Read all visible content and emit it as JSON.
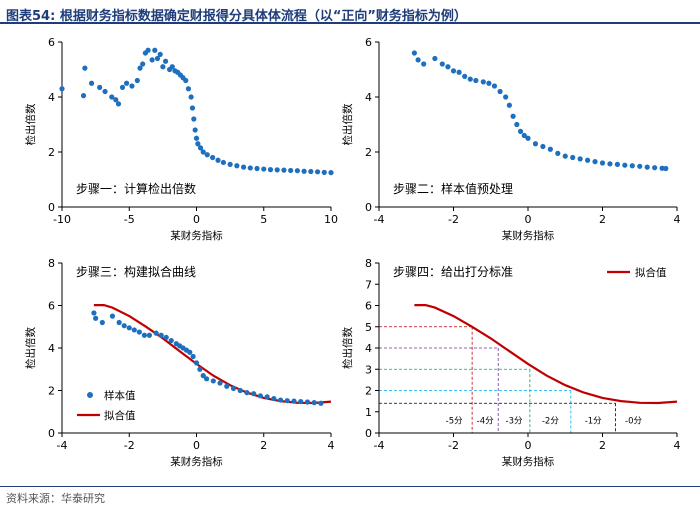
{
  "header": {
    "title": "图表54:   根据财务指标数据确定财报得分具体体流程（以“正向”财务指标为例）"
  },
  "footer": {
    "source": "资料来源：华泰研究"
  },
  "colors": {
    "sample": "#1f6fbf",
    "fit": "#c00000",
    "title": "#1f3d7a",
    "guide_red": "#c00000",
    "guide_purple": "#7030a0",
    "guide_green": "#00b050",
    "guide_cyan": "#00b0f0",
    "guide_teal": "#2e75b6",
    "guide_black": "#000000"
  },
  "chart_data": [
    {
      "type": "scatter",
      "step_label": "步骤一：计算检出倍数",
      "xlabel": "某财务指标",
      "ylabel": "检出倍数",
      "xlim": [
        -10,
        10
      ],
      "ylim": [
        0,
        6
      ],
      "xticks": [
        -10,
        -5,
        0,
        5,
        10
      ],
      "yticks": [
        0,
        2,
        4,
        6
      ],
      "points": [
        [
          -10,
          4.3
        ],
        [
          -8.3,
          5.05
        ],
        [
          -8.4,
          4.05
        ],
        [
          -7.8,
          4.5
        ],
        [
          -7.2,
          4.35
        ],
        [
          -6.8,
          4.2
        ],
        [
          -6.3,
          4.0
        ],
        [
          -6.0,
          3.9
        ],
        [
          -5.8,
          3.75
        ],
        [
          -5.5,
          4.35
        ],
        [
          -5.2,
          4.5
        ],
        [
          -4.8,
          4.4
        ],
        [
          -4.4,
          4.6
        ],
        [
          -4.2,
          5.05
        ],
        [
          -4.0,
          5.2
        ],
        [
          -3.8,
          5.6
        ],
        [
          -3.6,
          5.7
        ],
        [
          -3.3,
          5.35
        ],
        [
          -3.1,
          5.7
        ],
        [
          -2.9,
          5.4
        ],
        [
          -2.7,
          5.55
        ],
        [
          -2.5,
          5.1
        ],
        [
          -2.3,
          5.3
        ],
        [
          -2.0,
          5.0
        ],
        [
          -1.8,
          5.1
        ],
        [
          -1.6,
          4.95
        ],
        [
          -1.4,
          4.9
        ],
        [
          -1.2,
          4.8
        ],
        [
          -1.0,
          4.7
        ],
        [
          -0.8,
          4.6
        ],
        [
          -0.6,
          4.3
        ],
        [
          -0.4,
          4.0
        ],
        [
          -0.3,
          3.6
        ],
        [
          -0.2,
          3.2
        ],
        [
          -0.1,
          2.8
        ],
        [
          0.0,
          2.5
        ],
        [
          0.1,
          2.3
        ],
        [
          0.3,
          2.15
        ],
        [
          0.5,
          2.0
        ],
        [
          0.8,
          1.9
        ],
        [
          1.2,
          1.8
        ],
        [
          1.6,
          1.7
        ],
        [
          2.0,
          1.62
        ],
        [
          2.5,
          1.55
        ],
        [
          3.0,
          1.5
        ],
        [
          3.5,
          1.45
        ],
        [
          4.0,
          1.42
        ],
        [
          4.5,
          1.4
        ],
        [
          5.0,
          1.38
        ],
        [
          5.5,
          1.36
        ],
        [
          6.0,
          1.35
        ],
        [
          6.5,
          1.34
        ],
        [
          7.0,
          1.33
        ],
        [
          7.5,
          1.32
        ],
        [
          8.0,
          1.3
        ],
        [
          8.5,
          1.29
        ],
        [
          9.0,
          1.28
        ],
        [
          9.5,
          1.26
        ],
        [
          10.0,
          1.25
        ]
      ]
    },
    {
      "type": "scatter",
      "step_label": "步骤二：样本值预处理",
      "xlabel": "某财务指标",
      "ylabel": "检出倍数",
      "xlim": [
        -4,
        4
      ],
      "ylim": [
        0,
        6
      ],
      "xticks": [
        -4,
        -2,
        0,
        2,
        4
      ],
      "yticks": [
        0,
        2,
        4,
        6
      ],
      "points": [
        [
          -3.05,
          5.6
        ],
        [
          -2.95,
          5.35
        ],
        [
          -2.8,
          5.2
        ],
        [
          -2.5,
          5.4
        ],
        [
          -2.3,
          5.2
        ],
        [
          -2.15,
          5.1
        ],
        [
          -2.0,
          4.95
        ],
        [
          -1.85,
          4.9
        ],
        [
          -1.7,
          4.75
        ],
        [
          -1.55,
          4.65
        ],
        [
          -1.4,
          4.6
        ],
        [
          -1.2,
          4.55
        ],
        [
          -1.05,
          4.5
        ],
        [
          -0.9,
          4.4
        ],
        [
          -0.75,
          4.2
        ],
        [
          -0.6,
          4.0
        ],
        [
          -0.5,
          3.7
        ],
        [
          -0.4,
          3.3
        ],
        [
          -0.3,
          3.0
        ],
        [
          -0.2,
          2.75
        ],
        [
          -0.1,
          2.6
        ],
        [
          0.0,
          2.5
        ],
        [
          0.2,
          2.3
        ],
        [
          0.4,
          2.2
        ],
        [
          0.6,
          2.1
        ],
        [
          0.8,
          1.95
        ],
        [
          1.0,
          1.85
        ],
        [
          1.2,
          1.8
        ],
        [
          1.4,
          1.75
        ],
        [
          1.6,
          1.7
        ],
        [
          1.8,
          1.65
        ],
        [
          2.0,
          1.6
        ],
        [
          2.2,
          1.57
        ],
        [
          2.4,
          1.55
        ],
        [
          2.6,
          1.52
        ],
        [
          2.8,
          1.5
        ],
        [
          3.0,
          1.48
        ],
        [
          3.2,
          1.45
        ],
        [
          3.4,
          1.43
        ],
        [
          3.6,
          1.41
        ],
        [
          3.7,
          1.4
        ]
      ]
    },
    {
      "type": "scatter+line",
      "step_label": "步骤三：构建拟合曲线",
      "xlabel": "某财务指标",
      "ylabel": "检出倍数",
      "xlim": [
        -4,
        4
      ],
      "ylim": [
        0,
        8
      ],
      "xticks": [
        -4,
        -2,
        0,
        2,
        4
      ],
      "yticks": [
        0,
        2,
        4,
        6,
        8
      ],
      "legend": [
        "样本值",
        "拟合值"
      ],
      "legend_position": "bottom-left",
      "points": [
        [
          -3.05,
          5.65
        ],
        [
          -3.0,
          5.4
        ],
        [
          -2.8,
          5.2
        ],
        [
          -2.5,
          5.5
        ],
        [
          -2.3,
          5.2
        ],
        [
          -2.15,
          5.05
        ],
        [
          -2.0,
          4.95
        ],
        [
          -1.85,
          4.85
        ],
        [
          -1.7,
          4.75
        ],
        [
          -1.55,
          4.6
        ],
        [
          -1.4,
          4.6
        ],
        [
          -1.2,
          4.7
        ],
        [
          -1.05,
          4.6
        ],
        [
          -0.9,
          4.5
        ],
        [
          -0.75,
          4.35
        ],
        [
          -0.6,
          4.2
        ],
        [
          -0.5,
          4.1
        ],
        [
          -0.4,
          4.0
        ],
        [
          -0.3,
          3.9
        ],
        [
          -0.2,
          3.8
        ],
        [
          -0.1,
          3.6
        ],
        [
          0.0,
          3.3
        ],
        [
          0.1,
          3.0
        ],
        [
          0.2,
          2.7
        ],
        [
          0.3,
          2.55
        ],
        [
          0.5,
          2.45
        ],
        [
          0.7,
          2.35
        ],
        [
          0.9,
          2.2
        ],
        [
          1.1,
          2.1
        ],
        [
          1.3,
          2.0
        ],
        [
          1.5,
          1.9
        ],
        [
          1.7,
          1.85
        ],
        [
          1.9,
          1.75
        ],
        [
          2.1,
          1.7
        ],
        [
          2.3,
          1.62
        ],
        [
          2.5,
          1.55
        ],
        [
          2.7,
          1.52
        ],
        [
          2.9,
          1.5
        ],
        [
          3.1,
          1.48
        ],
        [
          3.3,
          1.46
        ],
        [
          3.5,
          1.43
        ],
        [
          3.7,
          1.4
        ]
      ],
      "fit": [
        [
          -3.05,
          6.02
        ],
        [
          -2.75,
          6.02
        ],
        [
          -2.5,
          5.9
        ],
        [
          -2.0,
          5.5
        ],
        [
          -1.5,
          5.0
        ],
        [
          -1.0,
          4.45
        ],
        [
          -0.5,
          3.85
        ],
        [
          0.0,
          3.25
        ],
        [
          0.5,
          2.7
        ],
        [
          1.0,
          2.25
        ],
        [
          1.5,
          1.9
        ],
        [
          2.0,
          1.65
        ],
        [
          2.5,
          1.5
        ],
        [
          3.0,
          1.42
        ],
        [
          3.5,
          1.41
        ],
        [
          4.0,
          1.48
        ]
      ]
    },
    {
      "type": "line",
      "step_label": "步骤四：给出打分标准",
      "xlabel": "某财务指标",
      "ylabel": "检出倍数",
      "xlim": [
        -4,
        4
      ],
      "ylim": [
        0,
        8
      ],
      "xticks": [
        -4,
        -2,
        0,
        2,
        4
      ],
      "yticks": [
        0,
        1,
        2,
        3,
        4,
        5,
        6,
        7,
        8
      ],
      "legend": [
        "拟合值"
      ],
      "legend_position": "top-right",
      "fit": [
        [
          -3.05,
          6.02
        ],
        [
          -2.75,
          6.02
        ],
        [
          -2.5,
          5.9
        ],
        [
          -2.0,
          5.5
        ],
        [
          -1.5,
          5.0
        ],
        [
          -1.0,
          4.45
        ],
        [
          -0.5,
          3.85
        ],
        [
          0.0,
          3.25
        ],
        [
          0.5,
          2.7
        ],
        [
          1.0,
          2.25
        ],
        [
          1.5,
          1.9
        ],
        [
          2.0,
          1.65
        ],
        [
          2.5,
          1.5
        ],
        [
          3.0,
          1.42
        ],
        [
          3.5,
          1.41
        ],
        [
          4.0,
          1.48
        ]
      ],
      "guides": [
        {
          "y": 5,
          "x": -1.5,
          "color": "red",
          "label": "-5分"
        },
        {
          "y": 4,
          "x": -0.8,
          "color": "purple",
          "label": "-4分"
        },
        {
          "y": 3,
          "x": 0.05,
          "color": "green",
          "label": "-3分"
        },
        {
          "y": 2,
          "x": 1.15,
          "color": "cyan",
          "label": "-2分"
        },
        {
          "y": 1.4,
          "x": 2.35,
          "color": "black",
          "label": "-1分"
        }
      ],
      "last_label": "-0分"
    }
  ]
}
